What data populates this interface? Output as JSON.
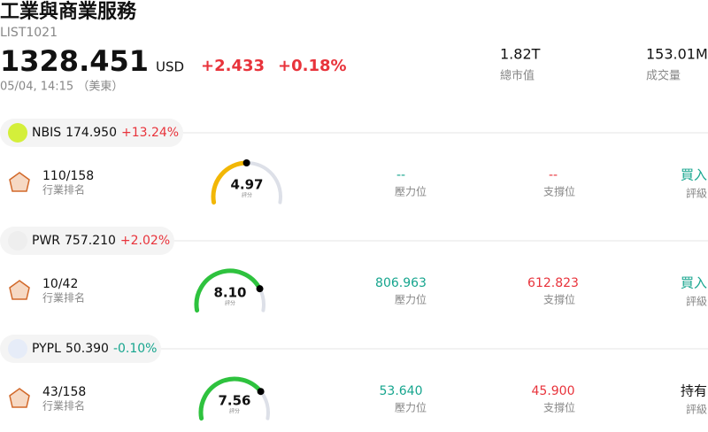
{
  "header": {
    "title": "工業與商業服務",
    "code": "LIST1021",
    "price": "1328.451",
    "currency": "USD",
    "change": "+2.433",
    "change_pct": "+0.18%",
    "time": "05/04, 14:15 （美東）",
    "stats": [
      {
        "value": "1.82T",
        "label": "總市值"
      },
      {
        "value": "153.01M",
        "label": "成交量"
      }
    ]
  },
  "stocks": [
    {
      "ticker": "NBIS",
      "price": "174.950",
      "change": "+13.24%",
      "rank": "110/158",
      "rank_label": "行業排名",
      "score": "4.97",
      "score_label": "評分",
      "resistance": "--",
      "resistance_label": "壓力位",
      "support": "--",
      "support_label": "支撐位",
      "rating": "買入",
      "rating_label": "評級"
    },
    {
      "ticker": "PWR",
      "price": "757.210",
      "change": "+2.02%",
      "rank": "10/42",
      "rank_label": "行業排名",
      "score": "8.10",
      "score_label": "評分",
      "resistance": "806.963",
      "resistance_label": "壓力位",
      "support": "612.823",
      "support_label": "支撐位",
      "rating": "買入",
      "rating_label": "評級"
    },
    {
      "ticker": "PYPL",
      "price": "50.390",
      "change": "-0.10%",
      "rank": "43/158",
      "rank_label": "行業排名",
      "score": "7.56",
      "score_label": "評分",
      "resistance": "53.640",
      "resistance_label": "壓力位",
      "support": "45.900",
      "support_label": "支撐位",
      "rating": "持有",
      "rating_label": "評級"
    }
  ]
}
